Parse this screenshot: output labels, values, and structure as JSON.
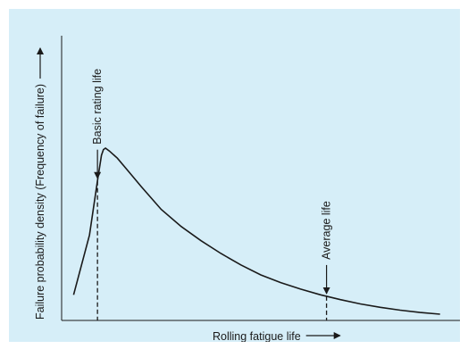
{
  "colors": {
    "panel_background": "#d6eef8",
    "ink": "#1a1a1a"
  },
  "chart_data": {
    "type": "line",
    "title": "",
    "xlabel": "Rolling fatigue life",
    "ylabel": "Failure probability density (Frequency of failure)",
    "xlim": [
      0,
      10
    ],
    "ylim": [
      0,
      10
    ],
    "grid": false,
    "legend": "none",
    "axis_arrows": true,
    "series": [
      {
        "values_note": "",
        "x": [
          0.3,
          0.7,
          0.9,
          1.0,
          1.05,
          1.1,
          1.2,
          1.4,
          1.7,
          2.0,
          2.5,
          3.0,
          3.5,
          4.0,
          4.5,
          5.0,
          5.5,
          6.0,
          6.5,
          7.0,
          7.5,
          8.0,
          8.5,
          9.0,
          9.5
        ],
        "y": [
          0.9,
          3.0,
          4.9,
          5.8,
          6.0,
          6.05,
          5.95,
          5.7,
          5.2,
          4.7,
          3.9,
          3.3,
          2.8,
          2.35,
          1.95,
          1.6,
          1.33,
          1.1,
          0.9,
          0.73,
          0.58,
          0.46,
          0.36,
          0.28,
          0.22
        ]
      }
    ],
    "annotations": [
      {
        "label": "Basic rating life",
        "x": 0.9
      },
      {
        "label": "Average life",
        "x": 6.65
      }
    ]
  }
}
